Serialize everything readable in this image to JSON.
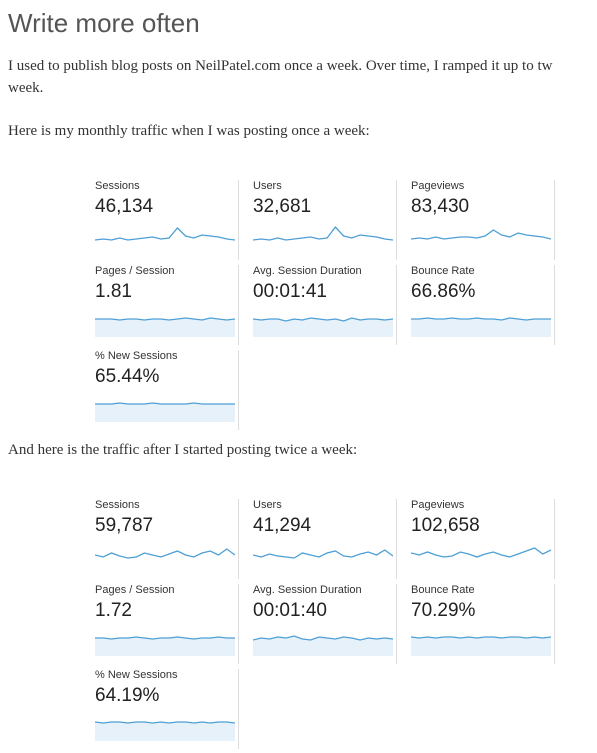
{
  "header": {
    "title": "Write more often"
  },
  "intro": [
    "I used to publish blog posts on NeilPatel.com once a week. Over time, I ramped it up to tw",
    "week."
  ],
  "sections": [
    {
      "caption": "Here is my monthly traffic when I was posting once a week:",
      "metrics": [
        {
          "label": "Sessions",
          "value": "46,134"
        },
        {
          "label": "Users",
          "value": "32,681"
        },
        {
          "label": "Pageviews",
          "value": "83,430"
        },
        {
          "label": "Pages / Session",
          "value": "1.81"
        },
        {
          "label": "Avg. Session Duration",
          "value": "00:01:41"
        },
        {
          "label": "Bounce Rate",
          "value": "66.86%"
        },
        {
          "label": "% New Sessions",
          "value": "65.44%"
        }
      ]
    },
    {
      "caption": "And here is the traffic after I started posting twice a week:",
      "metrics": [
        {
          "label": "Sessions",
          "value": "59,787"
        },
        {
          "label": "Users",
          "value": "41,294"
        },
        {
          "label": "Pageviews",
          "value": "102,658"
        },
        {
          "label": "Pages / Session",
          "value": "1.72"
        },
        {
          "label": "Avg. Session Duration",
          "value": "00:01:40"
        },
        {
          "label": "Bounce Rate",
          "value": "70.29%"
        },
        {
          "label": "% New Sessions",
          "value": "64.19%"
        }
      ]
    }
  ]
}
